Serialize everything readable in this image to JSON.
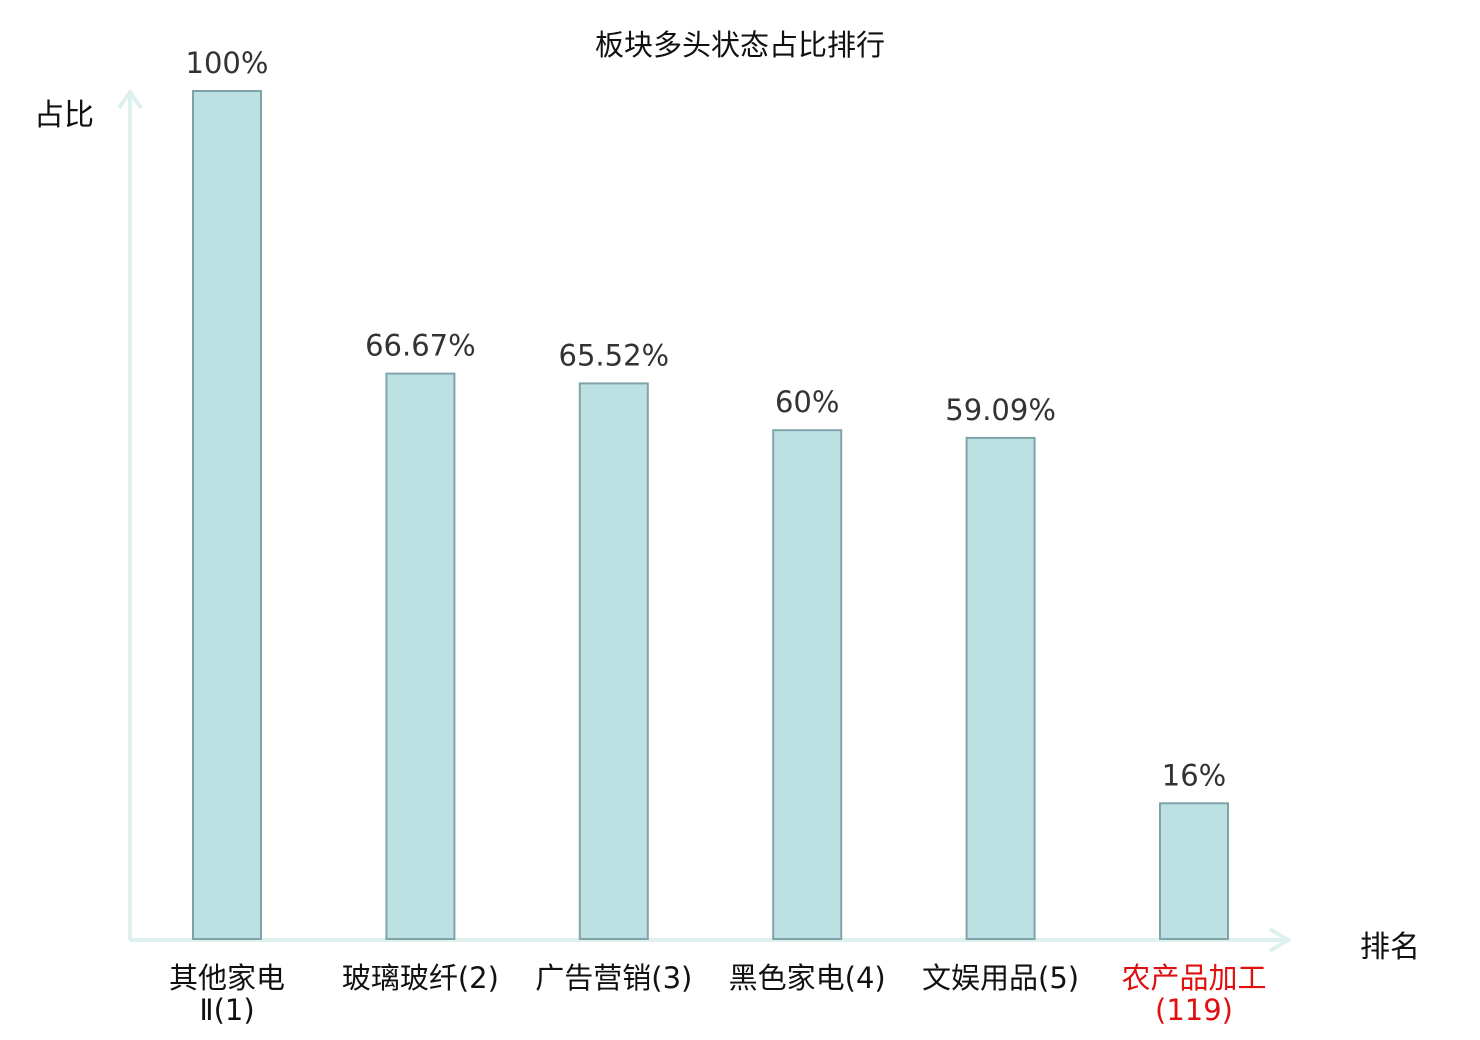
{
  "chart_data": {
    "type": "bar",
    "title": "板块多头状态占比排行",
    "ylabel": "占比",
    "xlabel": "排名",
    "categories": [
      "其他家电Ⅱ(1)",
      "玻璃玻纤(2)",
      "广告营销(3)",
      "黑色家电(4)",
      "文娱用品(5)",
      "农产品加工(119)"
    ],
    "values": [
      100,
      66.67,
      65.52,
      60,
      59.09,
      16
    ],
    "value_labels": [
      "100%",
      "66.67%",
      "65.52%",
      "60%",
      "59.09%",
      "16%"
    ],
    "ylim": [
      0,
      100
    ],
    "grid": false,
    "legend": "none"
  },
  "colors": {
    "bar_fill": "#bde0e3",
    "bar_stroke": "#7fa4a8",
    "axis": "#dff1ef",
    "highlight_label": "#e01010",
    "text": "#111111",
    "value_text": "#333333"
  },
  "highlight_category_index": 5
}
